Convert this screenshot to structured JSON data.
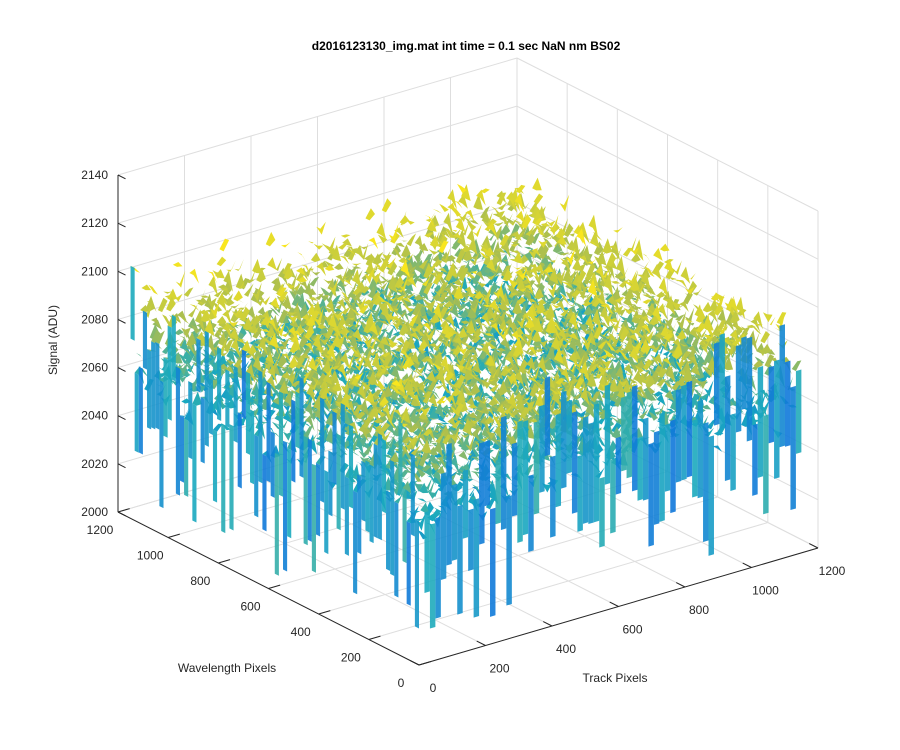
{
  "chart_data": {
    "type": "surface",
    "title": "d2016123130_img.mat int time = 0.1 sec  NaN nm BS02",
    "xlabel": "Track Pixels",
    "ylabel": "Wavelength Pixels",
    "zlabel": "Signal (ADU)",
    "x_ticks": [
      "0",
      "200",
      "400",
      "600",
      "800",
      "1000",
      "1200"
    ],
    "y_ticks": [
      "0",
      "200",
      "400",
      "600",
      "800",
      "1000",
      "1200"
    ],
    "z_ticks": [
      "2000",
      "2020",
      "2040",
      "2060",
      "2080",
      "2100",
      "2120",
      "2140"
    ],
    "xlim": [
      0,
      1200
    ],
    "ylim": [
      0,
      1200
    ],
    "zlim": [
      2000,
      2140
    ],
    "x_data_range": [
      0,
      1150
    ],
    "y_data_range": [
      0,
      1150
    ],
    "z_mean": 2070,
    "z_range": [
      2005,
      2130
    ],
    "grid": true,
    "colormap": "parula"
  }
}
